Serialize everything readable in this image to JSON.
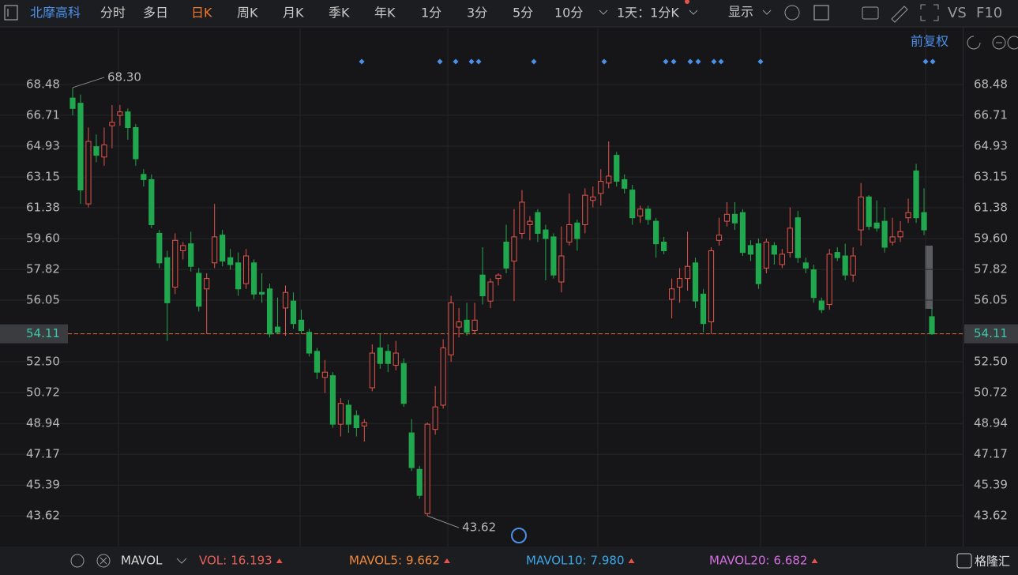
{
  "toolbar": {
    "stock": "北摩高科",
    "periods": [
      "分时",
      "多日",
      "日K",
      "周K",
      "月K",
      "季K",
      "年K",
      "1分",
      "3分",
      "5分",
      "10分"
    ],
    "active_index": 2,
    "interval": "1天：1分K",
    "display": "显示",
    "vs": "VS",
    "f10": "F10"
  },
  "adjust": "前复权",
  "chart_data": {
    "type": "candlestick",
    "open": [
      67.7,
      67.4,
      61.6,
      64.9,
      64.3,
      66.1,
      66.7,
      66.9,
      66.0,
      63.3,
      63.0,
      59.9,
      58.5,
      56.8,
      58.9,
      59.3,
      57.6,
      56.7,
      58.2,
      59.8,
      58.5,
      58.2,
      57.0,
      58.2,
      56.5,
      56.7,
      54.5,
      55.6,
      56.0,
      54.9,
      54.2,
      53.1,
      51.6,
      51.7,
      48.9,
      50.0,
      49.4,
      48.8,
      51.0,
      53.3,
      53.1,
      52.3,
      52.4,
      48.4,
      46.3,
      43.75,
      48.6,
      50.0,
      52.9,
      54.5,
      54.9,
      54.3,
      57.5,
      56.0,
      57.3,
      59.4,
      58.3,
      59.9,
      60.4,
      61.1,
      60.1,
      59.7,
      57.1,
      59.4,
      60.5,
      60.4,
      61.8,
      62.2,
      62.8,
      64.4,
      63.0,
      62.4,
      60.9,
      61.3,
      60.6,
      59.4,
      56.1,
      56.8,
      57.3,
      58.2,
      56.4,
      54.8,
      59.5,
      60.6,
      61.0,
      61.1,
      59.2,
      59.3,
      57.9,
      59.2,
      58.1,
      58.8,
      60.8,
      58.2,
      57.8,
      56.0,
      55.8,
      58.8,
      58.6,
      57.5,
      60.1,
      62.0,
      60.5,
      60.6,
      59.4,
      59.7,
      60.8,
      63.5,
      61.1,
      55.1
    ],
    "high": [
      68.3,
      67.9,
      66.0,
      65.6,
      66.0,
      67.3,
      67.3,
      67.1,
      66.2,
      63.6,
      63.3,
      60.1,
      58.9,
      59.9,
      59.4,
      60.0,
      57.9,
      57.6,
      61.6,
      60.1,
      59.0,
      58.8,
      59.0,
      58.4,
      57.6,
      57.0,
      56.2,
      56.9,
      56.5,
      55.5,
      54.4,
      53.3,
      52.6,
      51.9,
      50.4,
      50.3,
      49.7,
      49.2,
      53.5,
      54.1,
      53.5,
      53.7,
      52.7,
      49.2,
      46.5,
      49.0,
      51.1,
      53.8,
      56.3,
      55.6,
      55.9,
      55.9,
      59.1,
      57.3,
      57.6,
      60.4,
      61.3,
      62.4,
      60.9,
      61.3,
      60.4,
      59.9,
      60.3,
      62.2,
      60.7,
      62.5,
      62.6,
      63.6,
      65.2,
      64.6,
      63.3,
      62.7,
      61.5,
      61.5,
      60.8,
      59.7,
      57.3,
      57.9,
      60.0,
      58.5,
      56.7,
      59.1,
      60.8,
      61.7,
      61.7,
      61.3,
      59.5,
      59.6,
      59.6,
      59.4,
      59.0,
      61.4,
      61.2,
      58.5,
      58.1,
      56.2,
      59.0,
      59.1,
      59.3,
      59.1,
      62.8,
      62.1,
      61.8,
      61.4,
      60.8,
      60.6,
      61.9,
      63.9,
      62.5,
      55.6
    ],
    "low": [
      66.7,
      61.6,
      61.4,
      64.0,
      63.8,
      64.8,
      66.1,
      65.3,
      63.8,
      62.6,
      60.2,
      57.9,
      53.7,
      56.4,
      58.4,
      57.7,
      55.4,
      54.1,
      57.9,
      58.0,
      57.8,
      56.3,
      56.7,
      56.1,
      55.9,
      53.9,
      54.1,
      54.0,
      54.4,
      54.1,
      52.8,
      51.5,
      50.7,
      48.7,
      48.2,
      48.4,
      48.2,
      47.9,
      50.8,
      52.1,
      51.9,
      52.0,
      49.9,
      46.2,
      44.6,
      43.62,
      48.3,
      49.8,
      52.5,
      53.9,
      54.0,
      54.1,
      55.8,
      55.6,
      56.9,
      57.6,
      56.0,
      59.6,
      59.5,
      59.4,
      57.2,
      57.3,
      56.5,
      59.2,
      58.9,
      59.9,
      61.4,
      61.5,
      62.5,
      62.6,
      62.2,
      60.4,
      60.5,
      60.4,
      58.5,
      58.7,
      55.0,
      55.9,
      56.6,
      55.6,
      54.2,
      54.1,
      59.2,
      60.3,
      60.1,
      58.6,
      58.3,
      56.7,
      57.6,
      58.1,
      57.9,
      58.5,
      58.2,
      57.6,
      55.9,
      55.3,
      55.5,
      58.3,
      57.2,
      57.1,
      59.2,
      60.1,
      60.0,
      58.8,
      59.2,
      59.4,
      60.5,
      60.5,
      59.8,
      54.05
    ],
    "close": [
      67.1,
      62.4,
      65.2,
      64.4,
      65.0,
      66.3,
      66.9,
      66.0,
      64.2,
      63.0,
      60.4,
      58.2,
      55.9,
      59.5,
      59.2,
      58.0,
      55.7,
      57.3,
      59.7,
      58.3,
      58.1,
      56.7,
      58.6,
      56.4,
      56.4,
      54.1,
      54.2,
      56.5,
      54.7,
      54.3,
      53.0,
      51.9,
      51.9,
      48.9,
      50.1,
      48.9,
      48.7,
      49.0,
      53.0,
      52.4,
      52.4,
      53.0,
      50.1,
      46.4,
      44.8,
      48.9,
      49.9,
      53.3,
      55.9,
      54.8,
      54.2,
      54.9,
      56.3,
      57.1,
      57.5,
      57.9,
      59.7,
      61.7,
      60.6,
      59.9,
      59.6,
      57.5,
      58.6,
      60.4,
      59.6,
      62.1,
      62.0,
      62.9,
      63.2,
      62.9,
      62.5,
      60.8,
      61.3,
      60.7,
      59.3,
      58.9,
      56.7,
      57.3,
      58.0,
      56.0,
      54.7,
      58.9,
      59.8,
      61.0,
      60.5,
      58.8,
      58.7,
      57.0,
      59.4,
      58.7,
      58.7,
      60.2,
      58.5,
      57.9,
      56.2,
      55.5,
      58.7,
      58.5,
      57.5,
      58.6,
      62.0,
      60.3,
      60.2,
      59.1,
      59.7,
      60.0,
      61.1,
      60.8,
      60.1,
      54.11
    ],
    "ylim": [
      41.94,
      71.53
    ],
    "yticks": [
      68.48,
      66.71,
      64.93,
      63.15,
      61.38,
      {
        "value": 59.6,
        "label": "59.60"
      },
      57.82,
      56.05,
      54.11,
      {
        "value": 52.5,
        "label": "52.50"
      },
      50.72,
      48.94,
      47.17,
      45.39,
      43.62
    ],
    "up_color": "#e5534b",
    "down_color": "#21a84f",
    "grid": true,
    "high_mark": {
      "value": 68.3,
      "label": "68.30"
    },
    "low_mark": {
      "value": 43.62,
      "label": "43.62"
    },
    "last_price": 54.11
  },
  "indicators": {
    "name": "MAVOL",
    "items": [
      {
        "name": "VOL:",
        "value": 16.193,
        "color": "#e8605a"
      },
      {
        "name": "MAVOL5:",
        "value": 9.662,
        "color": "#f0893a"
      },
      {
        "name": "MAVOL10:",
        "value": 7.98,
        "label": "7.980",
        "color": "#3aa8e8"
      },
      {
        "name": "MAVOL20:",
        "value": 6.682,
        "color": "#d46ee0"
      }
    ]
  },
  "logo": "格隆汇"
}
